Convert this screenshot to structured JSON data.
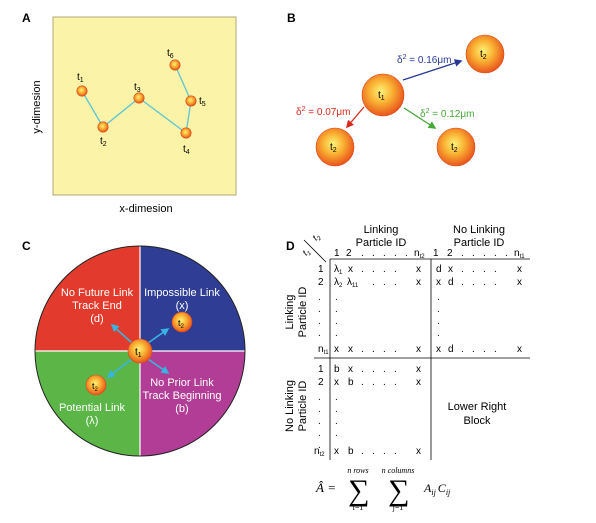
{
  "colors": {
    "plot_bg": "#fbf3a7",
    "plot_border": "#b0a77a",
    "track_line": "#5fc4d6",
    "particle_center": "#fbe35a",
    "particle_edge": "#e8551e",
    "arrow_blue": "#253995",
    "arrow_red": "#d8281c",
    "arrow_green": "#44a837",
    "quadrant_red": "#e23b2d",
    "quadrant_blue": "#2f3d95",
    "quadrant_green": "#5bb647",
    "quadrant_magenta": "#b23d96",
    "cyan_arrow": "#38b4e0"
  },
  "panelA": {
    "label": "A",
    "xlabel": "x-dimesion",
    "ylabel": "y-dimesion",
    "points": [
      {
        "sym": "t",
        "sub": "1"
      },
      {
        "sym": "t",
        "sub": "2"
      },
      {
        "sym": "t",
        "sub": "3"
      },
      {
        "sym": "t",
        "sub": "4"
      },
      {
        "sym": "t",
        "sub": "5"
      },
      {
        "sym": "t",
        "sub": "6"
      }
    ]
  },
  "panelB": {
    "label": "B",
    "center": {
      "sym": "t",
      "sub": "1"
    },
    "targets": [
      {
        "sym": "t",
        "sub": "2",
        "d2_prefix": "δ",
        "d2_sup": "2",
        "d2_value": " = 0.16μm"
      },
      {
        "sym": "t",
        "sub": "2",
        "d2_prefix": "δ",
        "d2_sup": "2",
        "d2_value": " = 0.07μm"
      },
      {
        "sym": "t",
        "sub": "2",
        "d2_prefix": "δ",
        "d2_sup": "2",
        "d2_value": " = 0.12μm"
      }
    ]
  },
  "panelC": {
    "label": "C",
    "quadrants": {
      "top_left": [
        "No Future Link",
        "Track End",
        "(d)"
      ],
      "top_right": [
        "Impossible Link",
        "(x)"
      ],
      "bottom_left": [
        "Potential Link",
        "(λ)"
      ],
      "bottom_right": [
        "No Prior Link",
        "Track Beginning",
        "(b)"
      ]
    },
    "center": {
      "sym": "t",
      "sub": "1"
    },
    "top_right_particle": {
      "sym": "t",
      "sub": "2"
    },
    "bottom_left_particle": {
      "sym": "t",
      "sub": "2"
    }
  },
  "panelD": {
    "label": "D",
    "corner_top": "t",
    "corner_top_sub": "2",
    "corner_left": "t",
    "corner_left_sub": "1",
    "col_head_left": [
      "Linking",
      "Particle ID"
    ],
    "col_head_right": [
      "No Linking",
      "Particle ID"
    ],
    "row_head_top": [
      "Linking",
      "Particle ID"
    ],
    "row_head_bottom": [
      "No Linking",
      "Particle ID"
    ],
    "lower_right": [
      "Lower Right",
      "Block"
    ],
    "col_indices_left": [
      "1",
      "2",
      ".",
      ".",
      ".",
      ".",
      ".",
      "n"
    ],
    "col_indices_left_last_sub": "t2",
    "col_indices_right": [
      "1",
      "2",
      ".",
      ".",
      ".",
      ".",
      ".",
      "n"
    ],
    "col_indices_right_last_sub": "t1",
    "row_indices_top": [
      "1",
      "2",
      ".",
      ".",
      ".",
      ".",
      "n"
    ],
    "row_indices_top_last_sub": "t1",
    "row_indices_bottom": [
      "1",
      "2",
      ".",
      ".",
      ".",
      ".",
      ".",
      "n"
    ],
    "row_indices_bottom_last_sub": "t2",
    "formula": {
      "lhs": "Â =",
      "sum1_top": "n rows",
      "sum1_bottom": "i=1",
      "sum2_top": "n columns",
      "sum2_bottom": "j=1",
      "term": "A",
      "term_sub": "ij",
      "term2": "C",
      "term2_sub": "ij"
    }
  }
}
